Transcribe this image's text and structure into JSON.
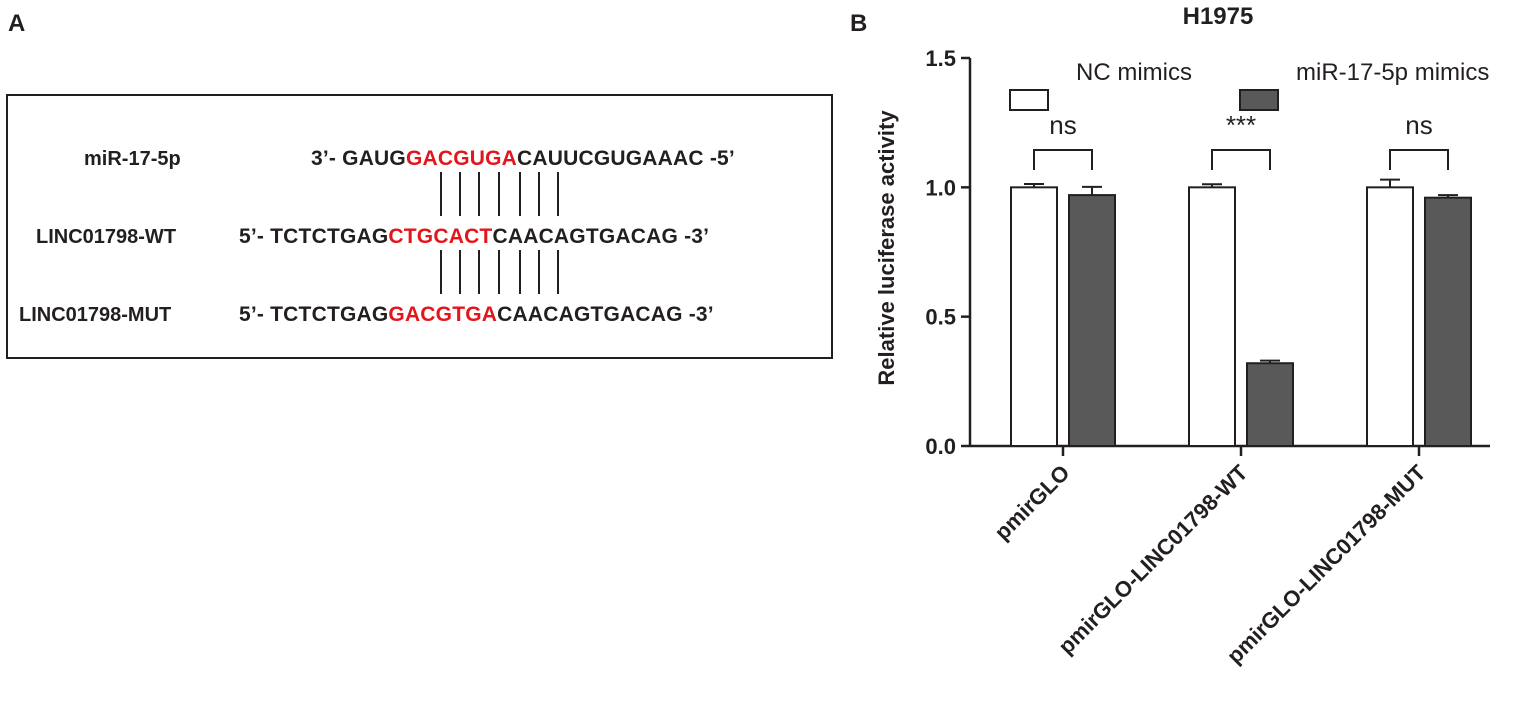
{
  "panel_a": {
    "label": "A",
    "rows": [
      {
        "name": "miR-17-5p",
        "prefix": "3’- ",
        "left": "GAUG",
        "mid": "GACGUGA",
        "right": "CAUUCGUGAAAC",
        "suffix": " -5’"
      },
      {
        "name": "LINC01798-WT",
        "prefix": "5’- ",
        "left": "TCTCTGAG",
        "mid": "CTGCACT",
        "right": "CAACAGTGACAG",
        "suffix": " -3’"
      },
      {
        "name": "LINC01798-MUT",
        "prefix": "5’- ",
        "left": "TCTCTGAG",
        "mid": "GACGTGA",
        "right": "CAACAGTGACAG",
        "suffix": " -3’"
      }
    ],
    "highlight_color": "#e3161c"
  },
  "panel_b": {
    "label": "B"
  },
  "chart_data": {
    "type": "bar",
    "title": "H1975",
    "ylabel": "Relative luciferase activity",
    "xlabel": "",
    "ylim": [
      0.0,
      1.5
    ],
    "yticks": [
      "0.0",
      "0.5",
      "1.0",
      "1.5"
    ],
    "categories": [
      "pmirGLO",
      "pmirGLO-LINC01798-WT",
      "pmirGLO-LINC01798-MUT"
    ],
    "series": [
      {
        "name": "NC mimics",
        "color": "#ffffff",
        "values": [
          1.0,
          1.0,
          1.0
        ],
        "errors": [
          0.013,
          0.012,
          0.03
        ]
      },
      {
        "name": "miR-17-5p mimics",
        "color": "#595959",
        "values": [
          0.97,
          0.32,
          0.96
        ],
        "errors": [
          0.032,
          0.01,
          0.01
        ]
      }
    ],
    "significance": [
      "ns",
      "***",
      "ns"
    ],
    "legend_position": "top"
  }
}
